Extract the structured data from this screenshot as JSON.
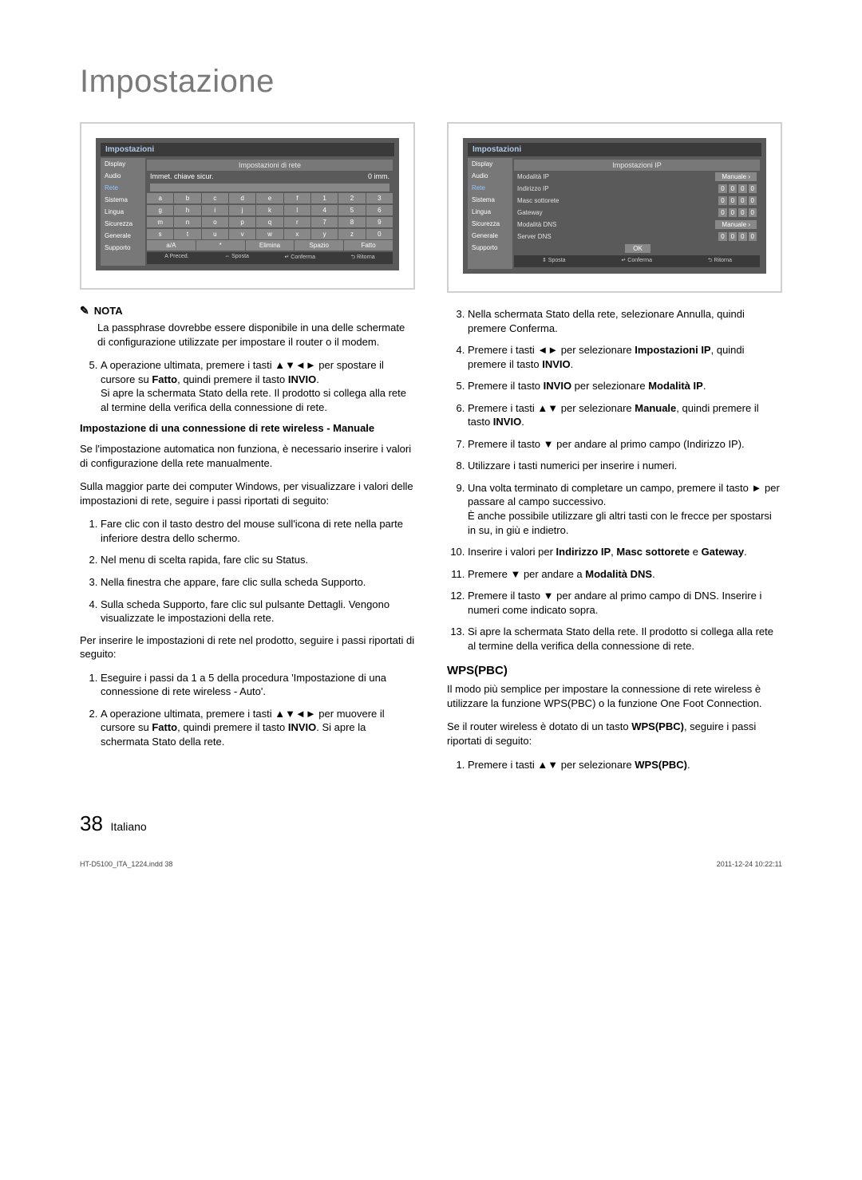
{
  "pageTitle": "Impostazione",
  "mock1": {
    "windowTitle": "Impostazioni",
    "subtitle": "Impostazioni di rete",
    "fieldLabel": "Immet. chiave sicur.",
    "fieldHint": "0 imm.",
    "sidebar": [
      "Display",
      "Audio",
      "Rete",
      "Sistema",
      "Lingua",
      "Sicurezza",
      "Generale",
      "Supporto"
    ],
    "keys_r1": [
      "a",
      "b",
      "c",
      "d",
      "e",
      "f",
      "1",
      "2",
      "3"
    ],
    "keys_r2": [
      "g",
      "h",
      "i",
      "j",
      "k",
      "l",
      "4",
      "5",
      "6"
    ],
    "keys_r3": [
      "m",
      "n",
      "o",
      "p",
      "q",
      "r",
      "7",
      "8",
      "9"
    ],
    "keys_r4": [
      "s",
      "t",
      "u",
      "v",
      "w",
      "x",
      "y",
      "z",
      "0"
    ],
    "bottom": [
      "a/A",
      "*",
      "Elimina",
      "Spazio",
      "Fatto"
    ],
    "footer": [
      "A Preced.",
      "⇔ Sposta",
      "↵ Conferma",
      "⮌ Ritorna"
    ]
  },
  "mock2": {
    "windowTitle": "Impostazioni",
    "subtitle": "Impostazioni IP",
    "sidebar": [
      "Display",
      "Audio",
      "Rete",
      "Sistema",
      "Lingua",
      "Sicurezza",
      "Generale",
      "Supporto"
    ],
    "rows": [
      {
        "label": "Modalità IP",
        "value": "Manuale",
        "kind": "select"
      },
      {
        "label": "Indirizzo IP",
        "value": [
          "0",
          "0",
          "0",
          "0"
        ],
        "kind": "ip"
      },
      {
        "label": "Masc sottorete",
        "value": [
          "0",
          "0",
          "0",
          "0"
        ],
        "kind": "ip"
      },
      {
        "label": "Gateway",
        "value": [
          "0",
          "0",
          "0",
          "0"
        ],
        "kind": "ip"
      },
      {
        "label": "Modalità DNS",
        "value": "Manuale",
        "kind": "select"
      },
      {
        "label": "Server DNS",
        "value": [
          "0",
          "0",
          "0",
          "0"
        ],
        "kind": "ip"
      }
    ],
    "ok": "OK",
    "footer": [
      "⇕ Sposta",
      "↵ Conferma",
      "⮌ Ritorna"
    ]
  },
  "left": {
    "noteIcon": "✎",
    "noteLabel": "NOTA",
    "noteBody": "La passphrase dovrebbe essere disponibile in una delle schermate di configurazione utilizzate per impostare il router o il modem.",
    "step5a": "A operazione ultimata, premere i tasti ▲▼◄► per spostare il cursore su ",
    "step5b": "Fatto",
    "step5c": ", quindi premere il tasto ",
    "step5d": "INVIO",
    "step5e": ".",
    "step5f": "Si apre la schermata Stato della rete. Il prodotto si collega alla rete al termine della verifica della connessione di rete.",
    "secHead": "Impostazione di una connessione di rete wireless - Manuale",
    "p1": "Se l'impostazione automatica non funziona, è necessario inserire i valori di configurazione della rete manualmente.",
    "p2": "Sulla maggior parte dei computer Windows, per visualizzare i valori delle impostazioni di rete, seguire i passi riportati di seguito:",
    "w": [
      "Fare clic con il tasto destro del mouse sull'icona di rete nella parte inferiore destra dello schermo.",
      "Nel menu di scelta rapida, fare clic su Status.",
      "Nella finestra che appare, fare clic sulla scheda Supporto.",
      "Sulla scheda Supporto, fare clic sul pulsante Dettagli. Vengono visualizzate le impostazioni della rete."
    ],
    "p3": "Per inserire le impostazioni di rete nel prodotto, seguire i passi riportati di seguito:",
    "b": [
      "Eseguire i passi da 1 a 5 della procedura 'Impostazione di una connessione di rete wireless - Auto'.",
      [
        "A operazione ultimata, premere i tasti ▲▼◄► per muovere il cursore su ",
        "Fatto",
        ", quindi premere il tasto ",
        "INVIO",
        ". Si apre la schermata Stato della rete."
      ]
    ]
  },
  "right": {
    "s3": "Nella schermata Stato della rete, selezionare Annulla, quindi premere Conferma.",
    "s4": [
      "Premere i tasti ◄► per selezionare ",
      "Impostazioni IP",
      ", quindi premere il tasto ",
      "INVIO",
      "."
    ],
    "s5": [
      "Premere il tasto ",
      "INVIO",
      " per selezionare ",
      "Modalità IP",
      "."
    ],
    "s6": [
      "Premere i tasti ▲▼ per selezionare ",
      "Manuale",
      ", quindi premere il tasto ",
      "INVIO",
      "."
    ],
    "s7": "Premere il tasto ▼ per andare al primo campo (Indirizzo IP).",
    "s8": "Utilizzare i tasti numerici per inserire i numeri.",
    "s9": "Una volta terminato di completare un campo, premere il tasto ► per passare al campo successivo.\nÈ anche possibile utilizzare gli altri tasti con le frecce per spostarsi in su, in giù e indietro.",
    "s10": [
      "Inserire i valori per ",
      "Indirizzo IP",
      ", ",
      "Masc sottorete",
      " e ",
      "Gateway",
      "."
    ],
    "s11": [
      "Premere ▼ per andare a ",
      "Modalità DNS",
      "."
    ],
    "s12": "Premere il tasto ▼ per andare al primo campo di DNS. Inserire i numeri come indicato sopra.",
    "s13": "Si apre la schermata Stato della rete. Il prodotto si collega alla rete al termine della verifica della connessione di rete.",
    "wpsHead": "WPS(PBC)",
    "wp1": "Il modo più semplice per impostare la connessione di rete wireless è utilizzare la funzione WPS(PBC) o la funzione One Foot Connection.",
    "wp2": [
      "Se il router wireless è dotato di un tasto ",
      "WPS(PBC)",
      ", seguire i passi riportati di seguito:"
    ],
    "wstep1": [
      "Premere i tasti ▲▼ per selezionare ",
      "WPS(PBC)",
      "."
    ]
  },
  "footer": {
    "num": "38",
    "lang": "Italiano",
    "file": "HT-D5100_ITA_1224.indd   38",
    "date": "2011-12-24   10:22:11"
  },
  "colors": {
    "titleGrey": "#7a7a7a",
    "mockBorder": "#d0d0d0",
    "mockBg": "#5a5a5a",
    "mockDark": "#3a3a3a",
    "mockSide": "#787878",
    "keyBg": "#888888",
    "accentBlue": "#b0c8e8"
  }
}
